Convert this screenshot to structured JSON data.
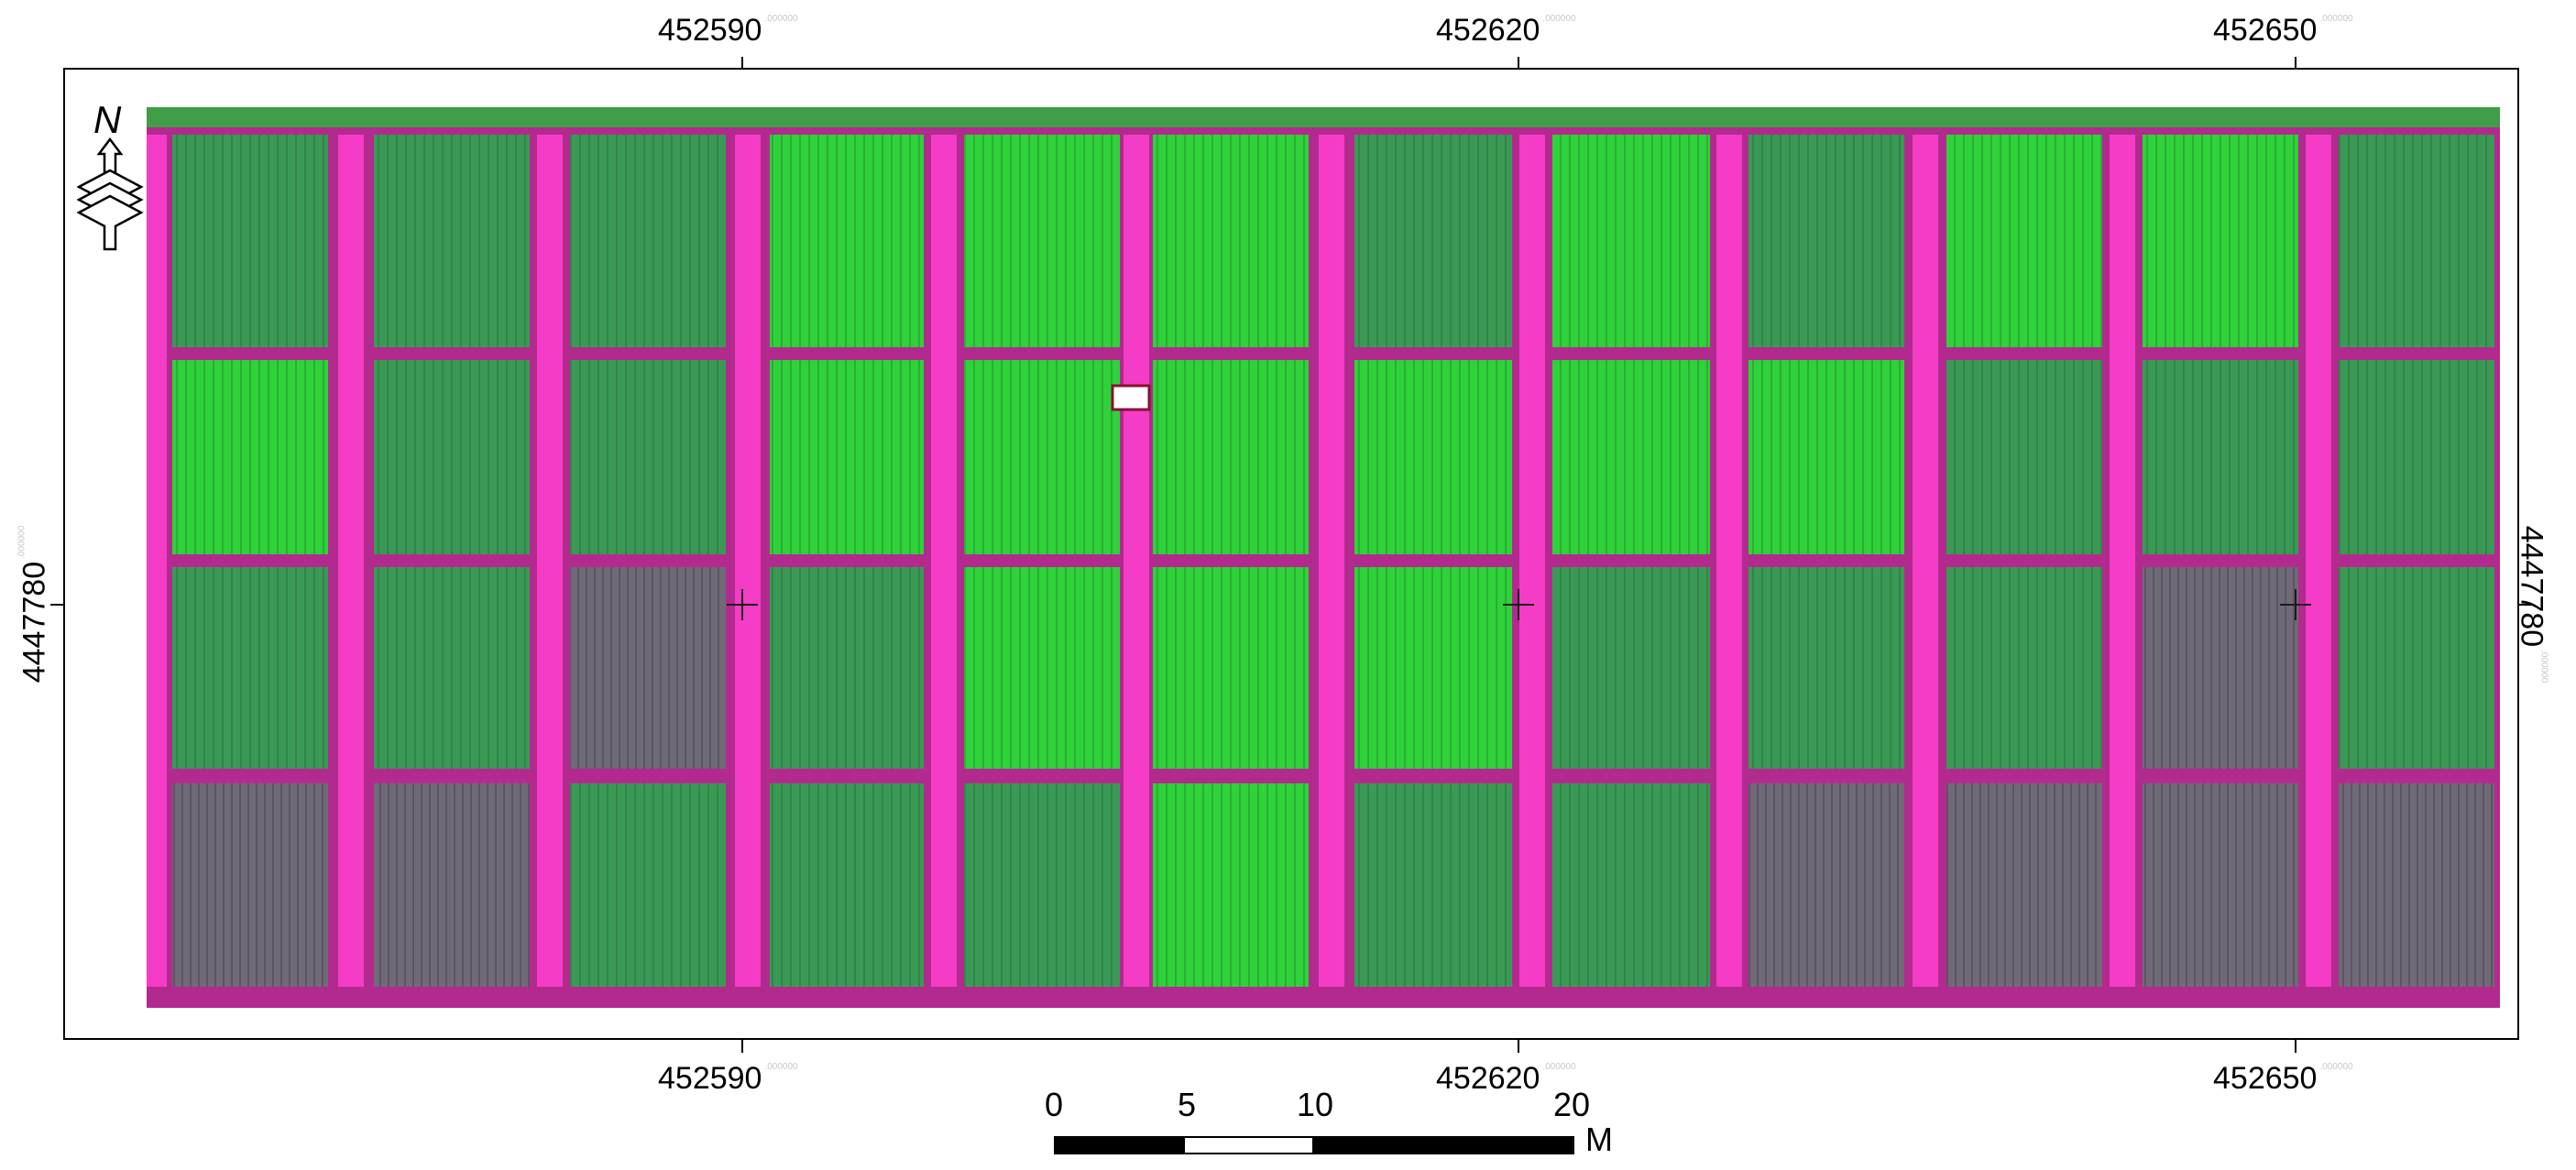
{
  "map": {
    "colors": {
      "road": "#c8309e",
      "road_light": "#ff3fd0",
      "crop": "#2fd23a",
      "crop_dark": "#3a9a55",
      "crop_purple": "#6f6a78"
    },
    "top_coords": [
      {
        "value": "452590",
        "suffix": ".000000"
      },
      {
        "value": "452620",
        "suffix": ".000000"
      },
      {
        "value": "452650",
        "suffix": ".000000"
      }
    ],
    "bottom_coords": [
      {
        "value": "452590",
        "suffix": ".000000"
      },
      {
        "value": "452620",
        "suffix": ".000000"
      },
      {
        "value": "452650",
        "suffix": ".000000"
      }
    ],
    "left_coord": {
      "value": "4447780",
      "suffix": ".000000"
    },
    "right_coord": {
      "value": "4447780",
      "suffix": ".000000"
    },
    "north_arrow": {
      "letter": "N",
      "icon": "north-arrow-icon"
    },
    "scale_bar": {
      "labels": [
        "0",
        "5",
        "10",
        "20"
      ],
      "unit": "M"
    }
  }
}
